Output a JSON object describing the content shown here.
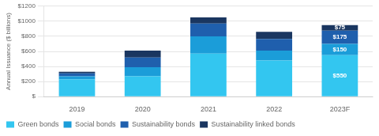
{
  "chart_data": {
    "type": "bar",
    "stacked": true,
    "grid": true,
    "legend": "bottom",
    "ylabel": "Annual Issuance ($ billions)",
    "categories": [
      "2019",
      "2020",
      "2021",
      "2022",
      "2023F"
    ],
    "series": [
      {
        "name": "Green bonds",
        "color": "#33C6F0",
        "values": [
          230,
          270,
          570,
          480,
          550
        ],
        "value_labels": [
          null,
          null,
          null,
          null,
          "$550"
        ]
      },
      {
        "name": "Social bonds",
        "color": "#1B9DD9",
        "values": [
          40,
          120,
          230,
          130,
          150
        ],
        "value_labels": [
          null,
          null,
          null,
          null,
          "$150"
        ]
      },
      {
        "name": "Sustainability bonds",
        "color": "#1F5FAD",
        "values": [
          40,
          130,
          170,
          155,
          175
        ],
        "value_labels": [
          null,
          null,
          null,
          null,
          "$175"
        ]
      },
      {
        "name": "Sustainability linked bonds",
        "color": "#1A3660",
        "values": [
          20,
          90,
          80,
          95,
          75
        ],
        "value_labels": [
          null,
          null,
          null,
          null,
          "$75"
        ]
      }
    ],
    "data_labels": true,
    "ylim": [
      0,
      1200
    ],
    "yticks": [
      {
        "value": 0,
        "label": "$"
      },
      {
        "value": 200,
        "label": "$200"
      },
      {
        "value": 400,
        "label": "$400"
      },
      {
        "value": 600,
        "label": "$600"
      },
      {
        "value": 800,
        "label": "$800"
      },
      {
        "value": 1000,
        "label": "$1000"
      },
      {
        "value": 1200,
        "label": "$1200"
      }
    ]
  }
}
